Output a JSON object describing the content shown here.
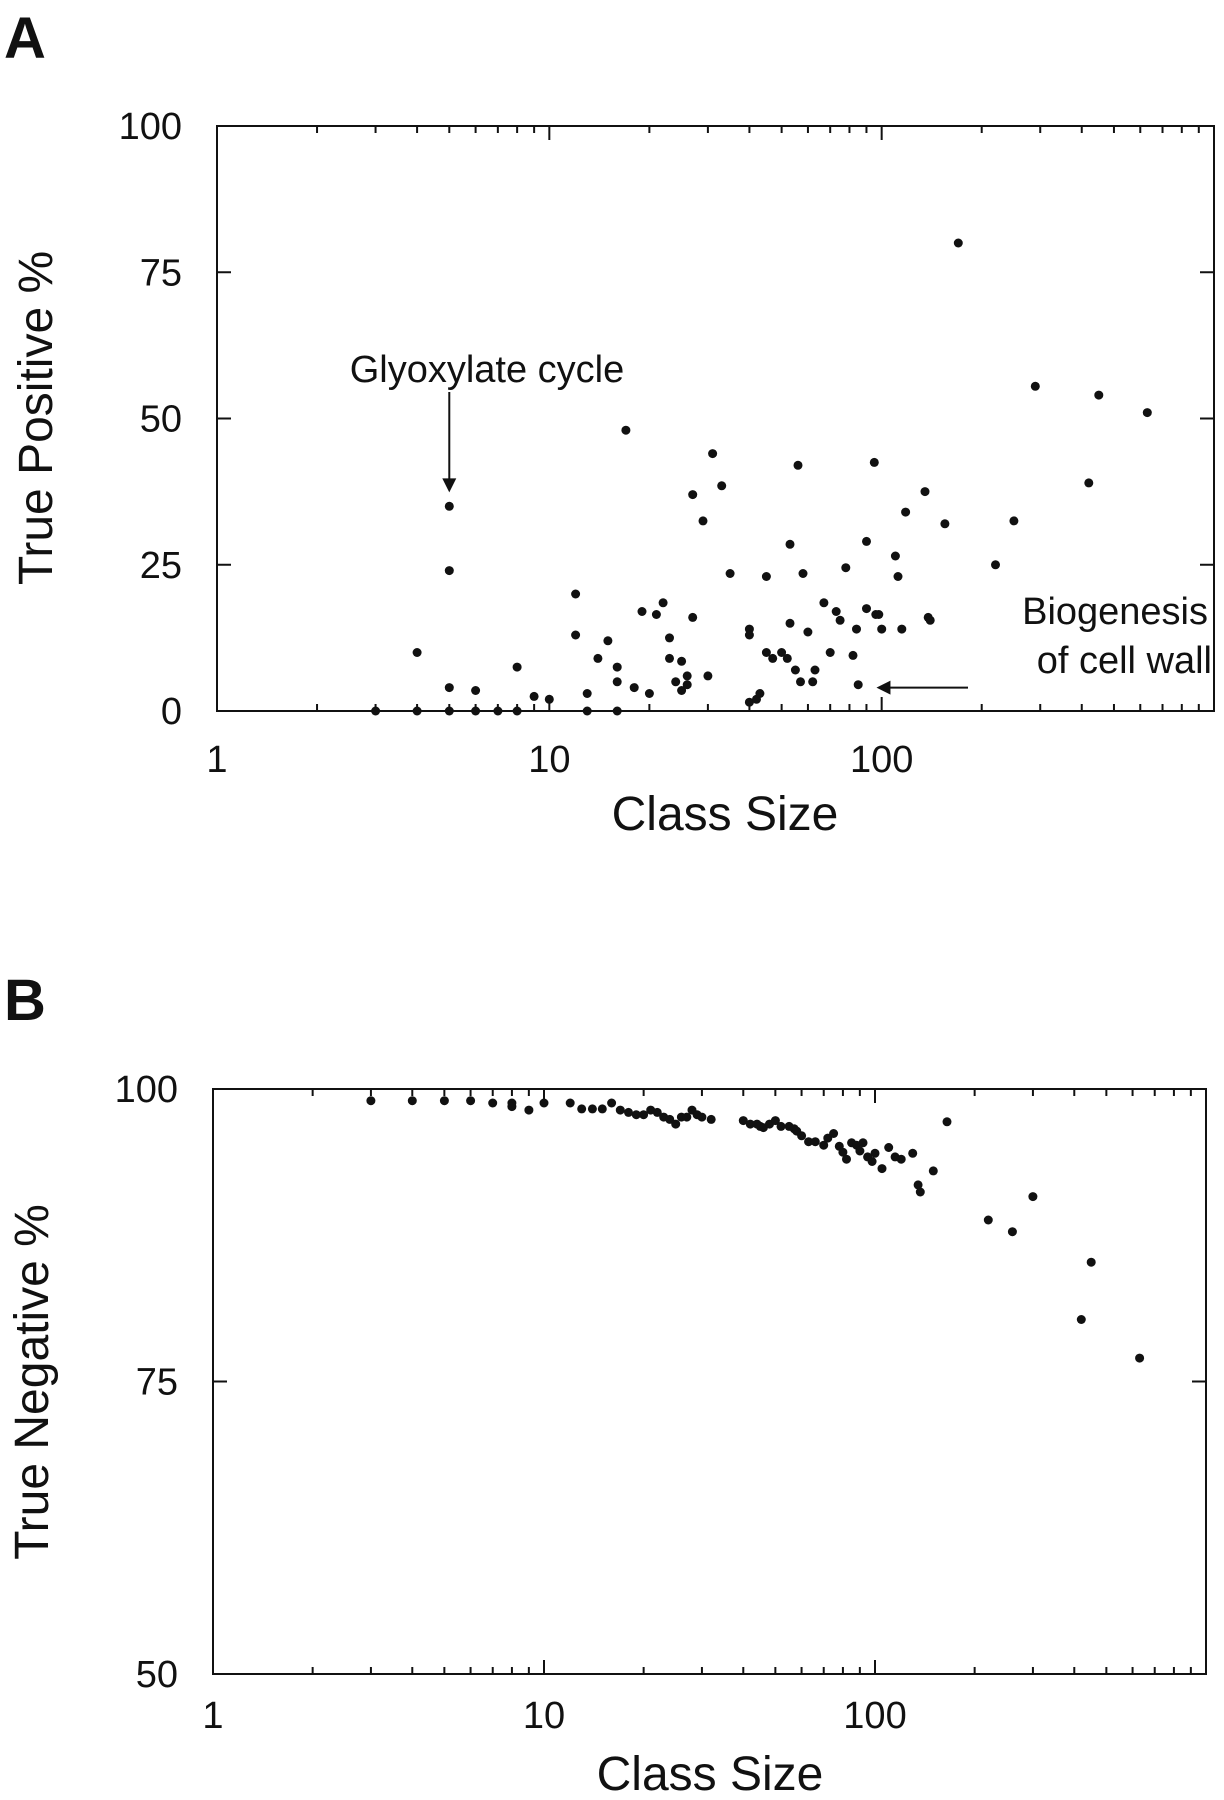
{
  "chart_data": [
    {
      "panel": "A",
      "type": "scatter",
      "xlabel": "Class Size",
      "ylabel": "True Positive %",
      "x_scale": "log",
      "xlim": [
        1,
        1000
      ],
      "ylim": [
        0,
        100
      ],
      "x_ticks": [
        {
          "value": 1,
          "label": "1"
        },
        {
          "value": 10,
          "label": "10"
        },
        {
          "value": 100,
          "label": "100"
        }
      ],
      "y_ticks": [
        {
          "value": 0,
          "label": "0"
        },
        {
          "value": 25,
          "label": "25"
        },
        {
          "value": 50,
          "label": "50"
        },
        {
          "value": 75,
          "label": "75"
        },
        {
          "value": 100,
          "label": "100"
        }
      ],
      "annotations": [
        {
          "lines": [
            "Glyoxylate cycle"
          ],
          "point": [
            5,
            36
          ]
        },
        {
          "lines": [
            "Biogenesis",
            "of cell wall"
          ],
          "point": [
            90,
            4
          ]
        }
      ],
      "points": [
        [
          3,
          0
        ],
        [
          4,
          0
        ],
        [
          4,
          10
        ],
        [
          5,
          0
        ],
        [
          5,
          4
        ],
        [
          5,
          24
        ],
        [
          5,
          35
        ],
        [
          6,
          0
        ],
        [
          6,
          3.5
        ],
        [
          7,
          0
        ],
        [
          8,
          0
        ],
        [
          8,
          7.5
        ],
        [
          9,
          2.5
        ],
        [
          10,
          2
        ],
        [
          12,
          20
        ],
        [
          12,
          13
        ],
        [
          13,
          0
        ],
        [
          13,
          3
        ],
        [
          14,
          9
        ],
        [
          15,
          12
        ],
        [
          16,
          7.5
        ],
        [
          16,
          5
        ],
        [
          16,
          0
        ],
        [
          17,
          48
        ],
        [
          18,
          4
        ],
        [
          19,
          17
        ],
        [
          20,
          3
        ],
        [
          21,
          16.5
        ],
        [
          22,
          18.5
        ],
        [
          23,
          12.5
        ],
        [
          23,
          9
        ],
        [
          24,
          5
        ],
        [
          25,
          8.5
        ],
        [
          25,
          3.5
        ],
        [
          26,
          4.5
        ],
        [
          26,
          6
        ],
        [
          27,
          16
        ],
        [
          27,
          37
        ],
        [
          29,
          32.5
        ],
        [
          30,
          6
        ],
        [
          31,
          44
        ],
        [
          33,
          38.5
        ],
        [
          35,
          23.5
        ],
        [
          40,
          14
        ],
        [
          40,
          13
        ],
        [
          40,
          1.5
        ],
        [
          42,
          2
        ],
        [
          43,
          3
        ],
        [
          45,
          23
        ],
        [
          45,
          10
        ],
        [
          47,
          9
        ],
        [
          50,
          10
        ],
        [
          52,
          9
        ],
        [
          53,
          28.5
        ],
        [
          53,
          15
        ],
        [
          55,
          7
        ],
        [
          56,
          42
        ],
        [
          57,
          5
        ],
        [
          58,
          23.5
        ],
        [
          60,
          13.5
        ],
        [
          62,
          5
        ],
        [
          63,
          7
        ],
        [
          67,
          18.5
        ],
        [
          70,
          10
        ],
        [
          73,
          17
        ],
        [
          75,
          15.5
        ],
        [
          78,
          24.5
        ],
        [
          82,
          9.5
        ],
        [
          84,
          14
        ],
        [
          85,
          4.5
        ],
        [
          90,
          29
        ],
        [
          90,
          17.5
        ],
        [
          95,
          42.5
        ],
        [
          96,
          16.5
        ],
        [
          98,
          16.5
        ],
        [
          100,
          14
        ],
        [
          110,
          26.5
        ],
        [
          112,
          23
        ],
        [
          115,
          14
        ],
        [
          118,
          34
        ],
        [
          135,
          37.5
        ],
        [
          138,
          16
        ],
        [
          140,
          15.5
        ],
        [
          155,
          32
        ],
        [
          170,
          80
        ],
        [
          220,
          25
        ],
        [
          250,
          32.5
        ],
        [
          290,
          55.5
        ],
        [
          420,
          39
        ],
        [
          450,
          54
        ],
        [
          630,
          51
        ]
      ]
    },
    {
      "panel": "B",
      "type": "scatter",
      "xlabel": "Class Size",
      "ylabel": "True Negative %",
      "x_scale": "log",
      "xlim": [
        1,
        1000
      ],
      "ylim": [
        50,
        100
      ],
      "x_ticks": [
        {
          "value": 1,
          "label": "1"
        },
        {
          "value": 10,
          "label": "10"
        },
        {
          "value": 100,
          "label": "100"
        }
      ],
      "y_ticks": [
        {
          "value": 50,
          "label": "50"
        },
        {
          "value": 75,
          "label": "75"
        },
        {
          "value": 100,
          "label": "100"
        }
      ],
      "points": [
        [
          3,
          99
        ],
        [
          4,
          99
        ],
        [
          5,
          99
        ],
        [
          6,
          99
        ],
        [
          7,
          98.8
        ],
        [
          8,
          98.8
        ],
        [
          8,
          98.5
        ],
        [
          9,
          98.2
        ],
        [
          10,
          98.8
        ],
        [
          12,
          98.8
        ],
        [
          13,
          98.3
        ],
        [
          14,
          98.3
        ],
        [
          15,
          98.3
        ],
        [
          16,
          98.8
        ],
        [
          17,
          98.2
        ],
        [
          18,
          98
        ],
        [
          19,
          97.8
        ],
        [
          20,
          97.8
        ],
        [
          21,
          98.2
        ],
        [
          22,
          98
        ],
        [
          23,
          97.6
        ],
        [
          24,
          97.4
        ],
        [
          25,
          97
        ],
        [
          26,
          97.6
        ],
        [
          27,
          97.6
        ],
        [
          28,
          98.2
        ],
        [
          29,
          97.8
        ],
        [
          30,
          97.6
        ],
        [
          32,
          97.4
        ],
        [
          40,
          97.3
        ],
        [
          42,
          97
        ],
        [
          44,
          97
        ],
        [
          45,
          96.8
        ],
        [
          46,
          96.7
        ],
        [
          48,
          97
        ],
        [
          50,
          97.3
        ],
        [
          52,
          96.8
        ],
        [
          55,
          96.8
        ],
        [
          57,
          96.6
        ],
        [
          58,
          96.4
        ],
        [
          60,
          96
        ],
        [
          63,
          95.5
        ],
        [
          66,
          95.5
        ],
        [
          70,
          95.2
        ],
        [
          72,
          95.8
        ],
        [
          75,
          96.2
        ],
        [
          78,
          95.1
        ],
        [
          80,
          94.6
        ],
        [
          82,
          94
        ],
        [
          85,
          95.4
        ],
        [
          88,
          95.2
        ],
        [
          90,
          94.7
        ],
        [
          92,
          95.4
        ],
        [
          95,
          94.2
        ],
        [
          98,
          93.8
        ],
        [
          100,
          94.5
        ],
        [
          105,
          93.2
        ],
        [
          110,
          95
        ],
        [
          115,
          94.2
        ],
        [
          120,
          94
        ],
        [
          130,
          94.5
        ],
        [
          135,
          91.8
        ],
        [
          137,
          91.2
        ],
        [
          150,
          93
        ],
        [
          165,
          97.2
        ],
        [
          220,
          88.8
        ],
        [
          260,
          87.8
        ],
        [
          300,
          90.8
        ],
        [
          420,
          80.3
        ],
        [
          450,
          85.2
        ],
        [
          630,
          77
        ]
      ]
    }
  ]
}
